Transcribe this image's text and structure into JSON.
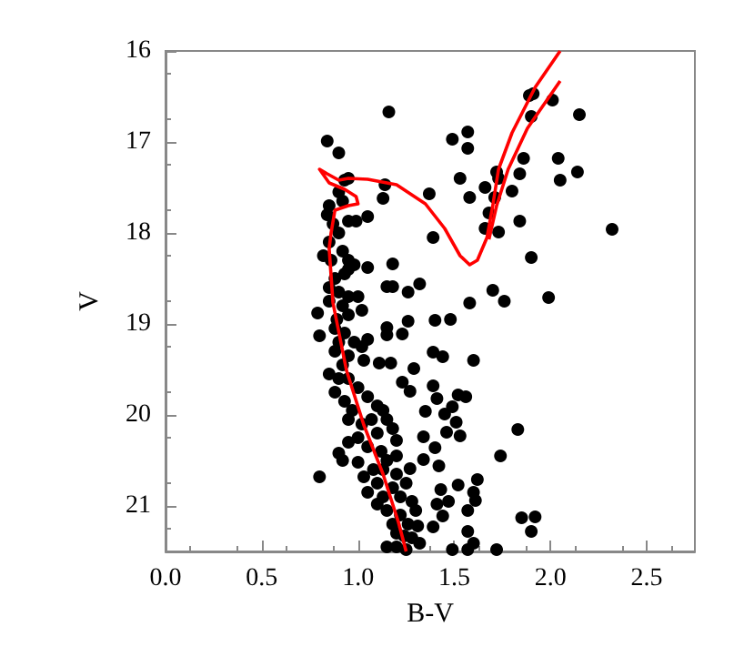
{
  "chart_data": {
    "type": "scatter",
    "xlabel": "B-V",
    "ylabel": "V",
    "xlim": [
      0,
      2.75
    ],
    "ylim": [
      21.5,
      16
    ],
    "xticks": [
      {
        "value": 0,
        "label": "0.0"
      },
      {
        "value": 0.5,
        "label": "0.5"
      },
      {
        "value": 1,
        "label": "1.0"
      },
      {
        "value": 1.5,
        "label": "1.5"
      },
      {
        "value": 2,
        "label": "2.0"
      },
      {
        "value": 2.5,
        "label": "2.5"
      }
    ],
    "yticks": [
      16,
      17,
      18,
      19,
      20,
      21
    ],
    "grid": false,
    "marker": "circle",
    "series": [
      {
        "color": "#000000",
        "x": [
          1.16,
          0.84,
          0.9,
          1.49,
          1.57,
          1.57,
          1.89,
          1.91,
          2.01,
          1.9,
          2.15,
          2.04,
          2.05,
          2.14,
          1.86,
          1.84,
          1.8,
          1.72,
          1.73,
          1.71,
          1.66,
          1.53,
          1.58,
          1.37,
          1.14,
          1.13,
          0.95,
          0.93,
          2.32,
          1.84,
          1.68,
          1.66,
          1.73,
          1.39,
          1.9,
          1.18,
          1.05,
          1.05,
          0.99,
          1.32,
          1.26,
          1.15,
          1.18,
          1.7,
          1.76,
          1.58,
          1.99,
          1.4,
          1.48,
          1.26,
          1.15,
          1.15,
          1.23,
          1.39,
          1.44,
          1.6,
          1.11,
          1.17,
          1.29,
          1.23,
          1.27,
          1.39,
          1.41,
          1.52,
          1.56,
          1.49,
          1.45,
          1.35,
          1.51,
          1.46,
          1.53,
          1.34,
          1.2,
          1.4,
          1.83,
          1.74,
          1.34,
          1.42,
          1.27,
          0.8,
          1.52,
          1.62,
          1.43,
          1.6,
          1.47,
          1.61,
          1.41,
          1.57,
          1.44,
          1.85,
          1.92,
          1.9,
          1.31,
          1.39,
          1.57,
          1.6,
          1.32,
          1.24,
          1.15,
          1.57,
          1.72,
          1.49,
          0.85,
          0.84,
          0.92,
          0.9,
          0.87,
          0.95,
          0.9,
          0.85,
          0.82,
          0.86,
          0.92,
          0.95,
          0.98,
          0.93,
          0.88,
          0.95,
          0.85,
          0.9,
          0.95,
          1.0,
          0.85,
          0.92,
          1.02,
          0.95,
          0.89,
          0.79,
          0.8,
          0.88,
          0.93,
          0.98,
          1.02,
          0.9,
          0.95,
          1.05,
          1.03,
          0.88,
          0.92,
          0.85,
          0.9,
          0.95,
          1.0,
          0.88,
          0.93,
          1.05,
          1.1,
          0.97,
          1.13,
          0.95,
          1.02,
          1.07,
          1.15,
          1.0,
          1.1,
          1.18,
          0.95,
          1.05,
          1.12,
          0.9,
          0.92,
          1.0,
          1.15,
          1.2,
          1.08,
          1.13,
          1.2,
          1.03,
          1.1,
          1.18,
          1.25,
          1.05,
          1.13,
          1.22,
          1.28,
          1.1,
          1.15,
          1.22,
          1.3,
          1.18,
          1.26,
          1.2,
          1.28,
          1.2,
          1.25
        ],
        "values": [
          16.67,
          16.99,
          17.12,
          16.97,
          16.89,
          17.07,
          16.49,
          16.47,
          16.54,
          16.72,
          16.7,
          17.18,
          17.42,
          17.33,
          17.18,
          17.35,
          17.54,
          17.33,
          17.4,
          17.61,
          17.5,
          17.4,
          17.61,
          17.57,
          17.47,
          17.62,
          17.4,
          17.42,
          17.96,
          17.87,
          17.78,
          17.95,
          17.99,
          18.05,
          18.27,
          18.34,
          18.38,
          17.82,
          17.87,
          18.56,
          18.65,
          18.59,
          18.59,
          18.63,
          18.75,
          18.77,
          18.71,
          18.96,
          18.95,
          18.97,
          19.04,
          19.12,
          19.11,
          19.31,
          19.36,
          19.4,
          19.43,
          19.43,
          19.49,
          19.64,
          19.74,
          19.68,
          19.82,
          19.78,
          19.8,
          19.91,
          19.99,
          19.96,
          20.08,
          20.19,
          20.23,
          20.24,
          20.28,
          20.36,
          20.16,
          20.45,
          20.49,
          20.56,
          20.59,
          20.68,
          20.77,
          20.71,
          20.82,
          20.85,
          20.95,
          20.94,
          20.98,
          21.05,
          21.11,
          21.13,
          21.12,
          21.28,
          21.22,
          21.23,
          21.28,
          21.41,
          21.41,
          21.33,
          21.45,
          21.48,
          21.48,
          21.48,
          17.7,
          17.8,
          17.65,
          17.55,
          17.9,
          17.87,
          18.0,
          18.1,
          18.25,
          18.3,
          18.2,
          18.3,
          18.35,
          18.45,
          18.5,
          18.4,
          18.6,
          18.65,
          18.7,
          18.7,
          18.75,
          18.8,
          18.85,
          18.9,
          18.95,
          18.88,
          19.13,
          19.05,
          19.1,
          19.2,
          19.25,
          19.2,
          19.35,
          19.17,
          19.4,
          19.3,
          19.45,
          19.55,
          19.6,
          19.6,
          19.7,
          19.75,
          19.85,
          19.8,
          19.9,
          19.95,
          19.95,
          20.05,
          20.1,
          20.05,
          20.05,
          20.25,
          20.2,
          20.15,
          20.3,
          20.35,
          20.4,
          20.42,
          20.5,
          20.52,
          20.5,
          20.45,
          20.6,
          20.6,
          20.65,
          20.68,
          20.75,
          20.8,
          20.75,
          20.85,
          20.9,
          20.9,
          20.95,
          20.98,
          21.05,
          21.1,
          21.05,
          21.2,
          21.2,
          21.3,
          21.35,
          21.45,
          21.48
        ]
      },
      {
        "type": "line",
        "color": "#ff0000",
        "marker": "none",
        "x": [
          1.25,
          1.21,
          1.13,
          1.03,
          0.94,
          0.87,
          0.85,
          0.86,
          0.88,
          0.95,
          1.0,
          0.99,
          0.93,
          0.85,
          0.8,
          0.84,
          0.9,
          0.95,
          1.05,
          1.2,
          1.35,
          1.45,
          1.53,
          1.58,
          1.62,
          1.67,
          1.7,
          1.73,
          1.8,
          1.92,
          2.05
        ],
        "values": [
          21.5,
          21.18,
          20.65,
          20.11,
          19.51,
          18.77,
          18.17,
          18.0,
          17.75,
          17.7,
          17.68,
          17.6,
          17.52,
          17.45,
          17.3,
          17.35,
          17.42,
          17.4,
          17.41,
          17.47,
          17.68,
          17.95,
          18.25,
          18.35,
          18.3,
          18.05,
          17.7,
          17.3,
          16.9,
          16.4,
          16.0
        ]
      },
      {
        "type": "line",
        "color": "#ff0000",
        "marker": "none",
        "x": [
          1.68,
          1.72,
          1.78,
          1.88,
          2.05
        ],
        "values": [
          18.07,
          17.7,
          17.3,
          16.85,
          16.33
        ]
      }
    ]
  }
}
